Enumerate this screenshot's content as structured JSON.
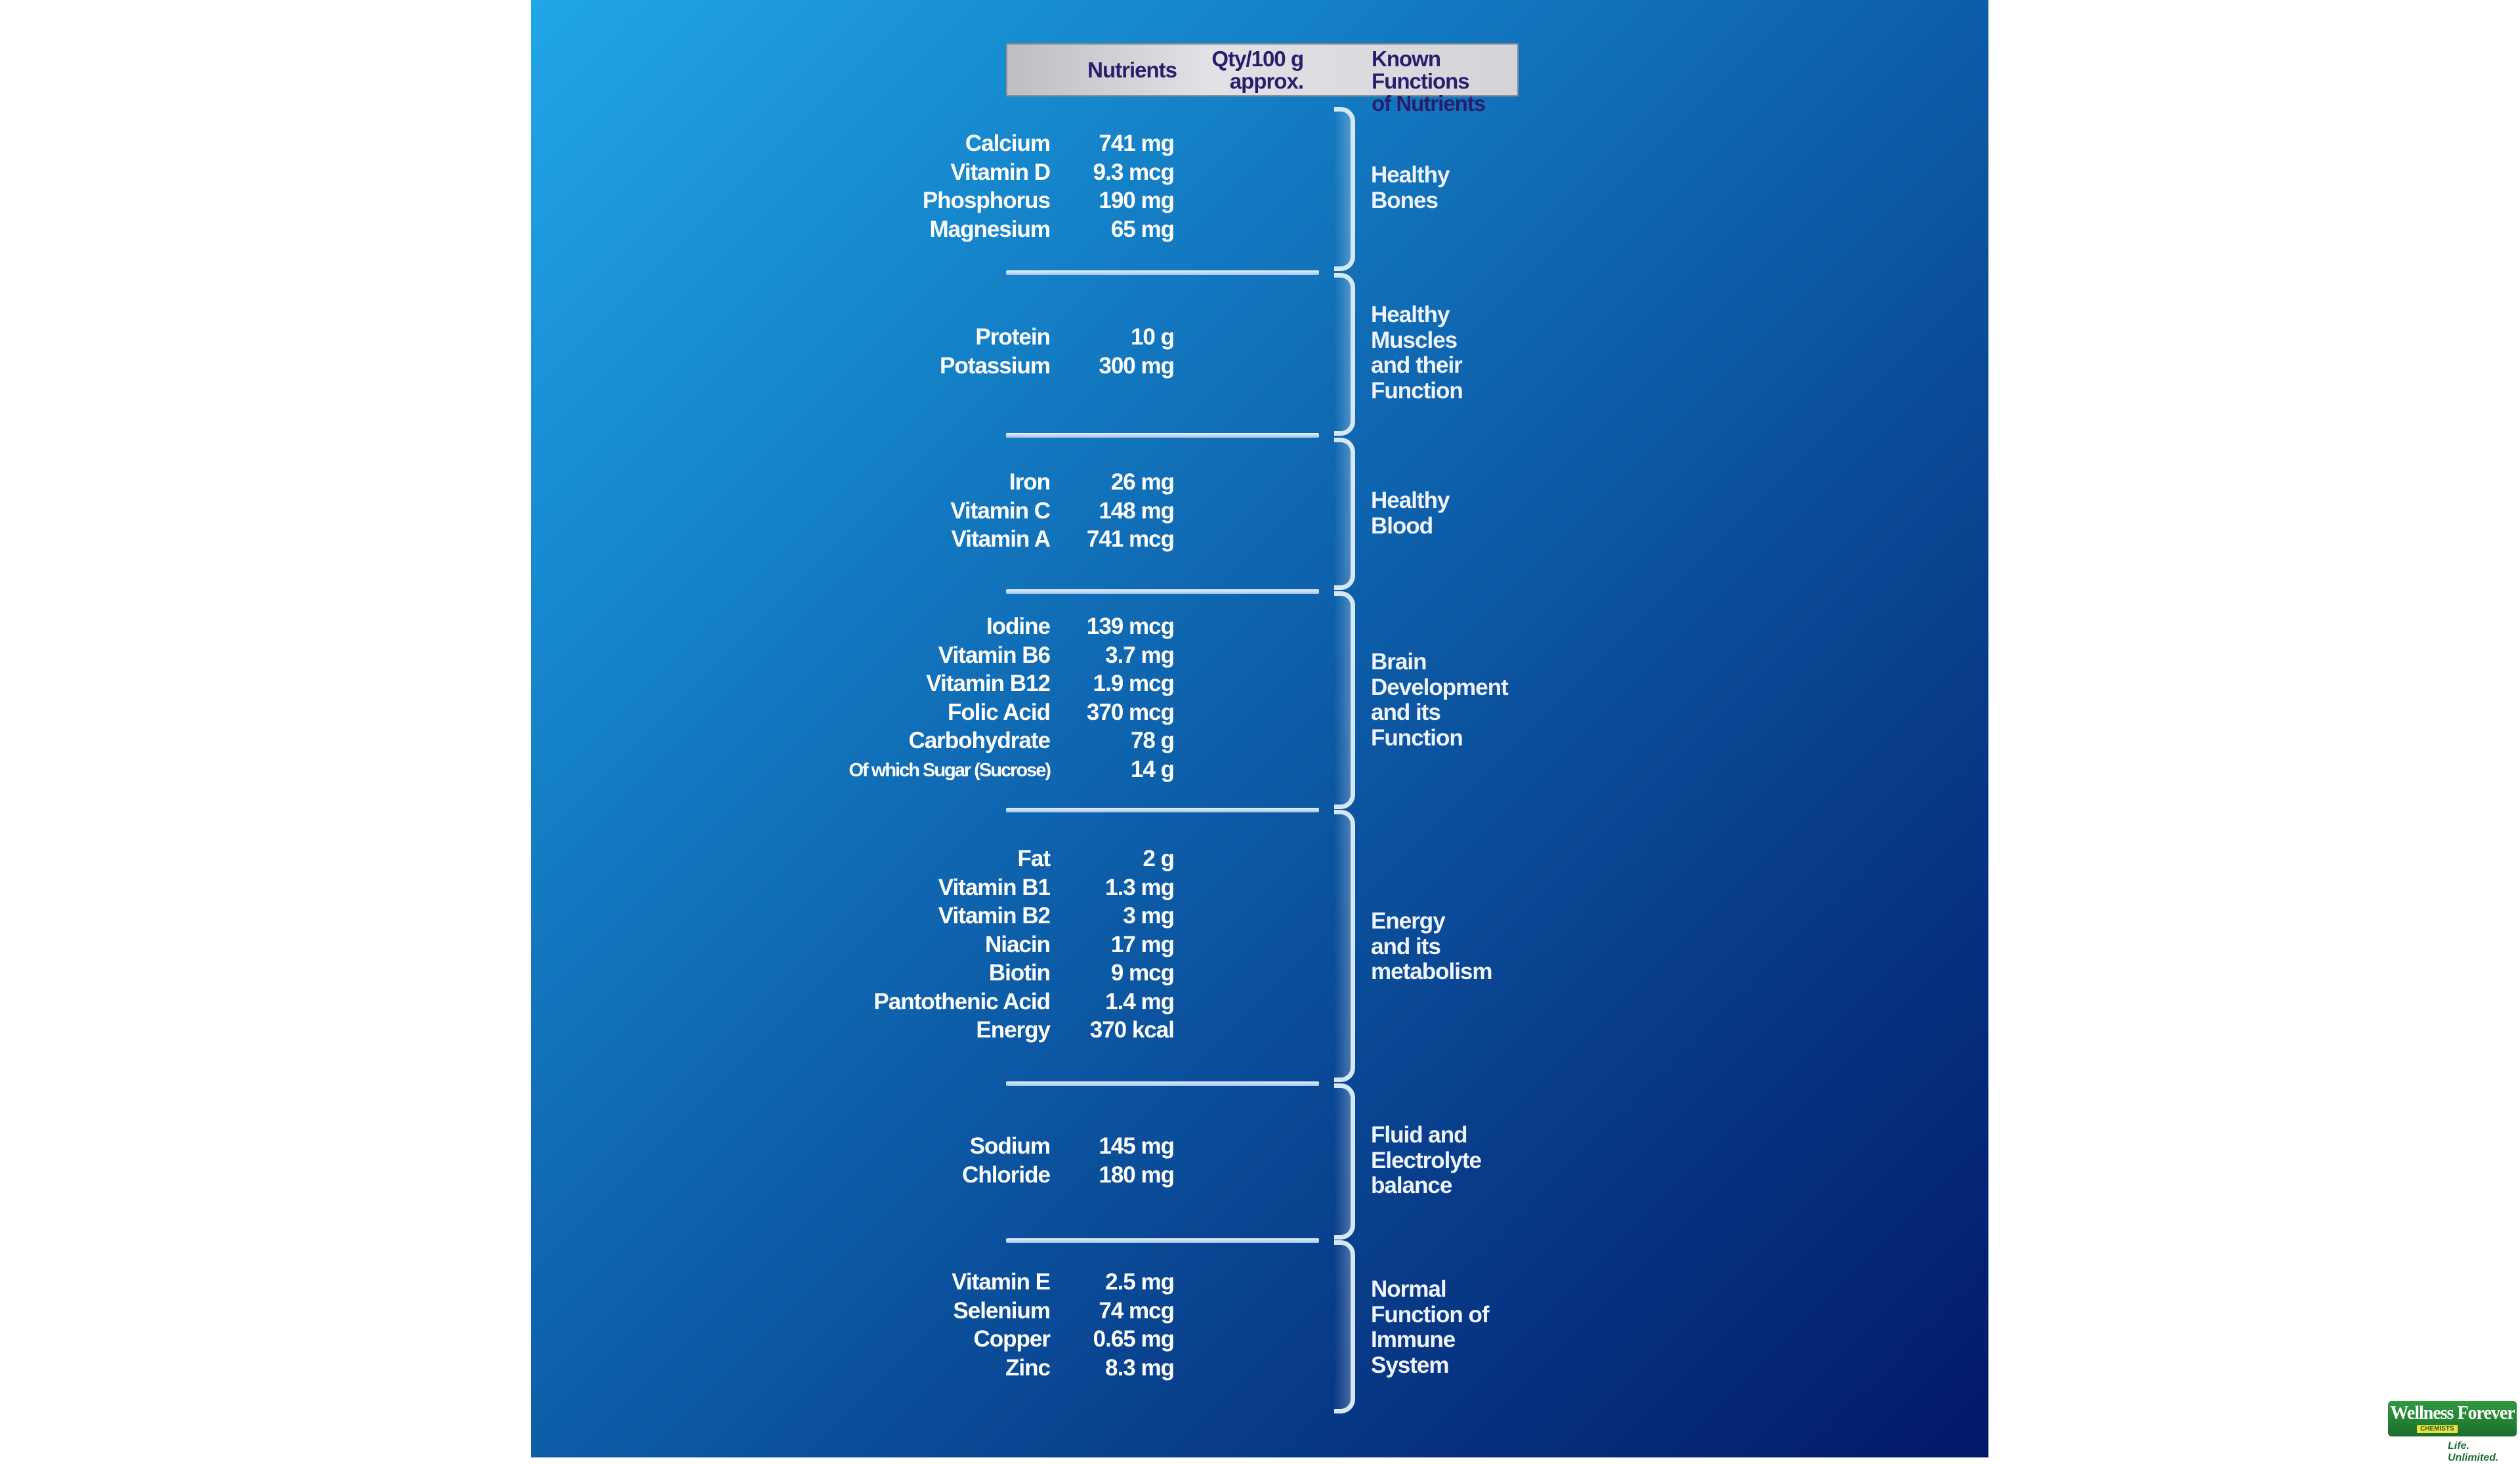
{
  "header": {
    "nutrients": "Nutrients",
    "qty": "Qty/100 g\napprox.",
    "functions": "Known Functions\nof Nutrients"
  },
  "sections": [
    {
      "function": "Healthy\nBones",
      "rows": [
        {
          "name": "Calcium",
          "qty": "741 mg"
        },
        {
          "name": "Vitamin D",
          "qty": "9.3 mcg"
        },
        {
          "name": "Phosphorus",
          "qty": "190 mg"
        },
        {
          "name": "Magnesium",
          "qty": "65 mg"
        }
      ]
    },
    {
      "function": "Healthy\nMuscles\nand their\nFunction",
      "rows": [
        {
          "name": "Protein",
          "qty": "10 g"
        },
        {
          "name": "Potassium",
          "qty": "300 mg"
        }
      ]
    },
    {
      "function": "Healthy\nBlood",
      "rows": [
        {
          "name": "Iron",
          "qty": "26 mg"
        },
        {
          "name": "Vitamin C",
          "qty": "148 mg"
        },
        {
          "name": "Vitamin A",
          "qty": "741 mcg"
        }
      ]
    },
    {
      "function": "Brain\nDevelopment\nand its\nFunction",
      "rows": [
        {
          "name": "Iodine",
          "qty": "139 mcg"
        },
        {
          "name": "Vitamin B6",
          "qty": "3.7 mg"
        },
        {
          "name": "Vitamin B12",
          "qty": "1.9 mcg"
        },
        {
          "name": "Folic Acid",
          "qty": "370 mcg"
        },
        {
          "name": "Carbohydrate",
          "qty": "78 g"
        },
        {
          "name": "Of which Sugar (Sucrose)",
          "qty": "14 g"
        }
      ]
    },
    {
      "function": "Energy\nand its\nmetabolism",
      "rows": [
        {
          "name": "Fat",
          "qty": "2 g"
        },
        {
          "name": "Vitamin B1",
          "qty": "1.3 mg"
        },
        {
          "name": "Vitamin B2",
          "qty": "3 mg"
        },
        {
          "name": "Niacin",
          "qty": "17 mg"
        },
        {
          "name": "Biotin",
          "qty": "9 mcg"
        },
        {
          "name": "Pantothenic Acid",
          "qty": "1.4 mg"
        },
        {
          "name": "Energy",
          "qty": "370 kcal"
        }
      ]
    },
    {
      "function": "Fluid and\nElectrolyte\nbalance",
      "rows": [
        {
          "name": "Sodium",
          "qty": "145 mg"
        },
        {
          "name": "Chloride",
          "qty": "180 mg"
        }
      ]
    },
    {
      "function": "Normal\nFunction of\nImmune\nSystem",
      "rows": [
        {
          "name": "Vitamin E",
          "qty": "2.5 mg"
        },
        {
          "name": "Selenium",
          "qty": "74 mcg"
        },
        {
          "name": "Copper",
          "qty": "0.65 mg"
        },
        {
          "name": "Zinc",
          "qty": "8.3 mg"
        }
      ]
    }
  ],
  "logo": {
    "title": "Wellness Forever",
    "subtitle": "CHEMISTS",
    "tagline": "Life. Unlimited."
  }
}
